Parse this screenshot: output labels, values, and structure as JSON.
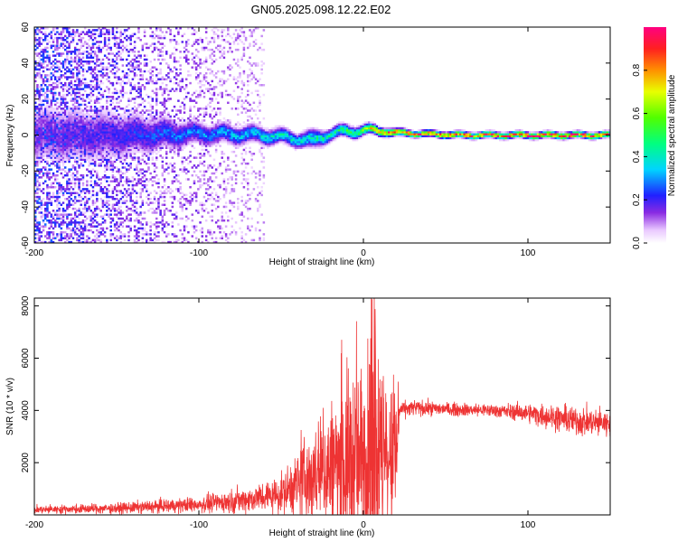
{
  "title": "GN05.2025.098.12.22.E02",
  "chart_data": [
    {
      "type": "heatmap",
      "xlabel": "Height of straight line (km)",
      "ylabel": "Frequency (Hz)",
      "xlim": [
        -200,
        150
      ],
      "ylim": [
        -60,
        60
      ],
      "x_ticks": [
        -200,
        -100,
        0,
        100
      ],
      "y_ticks": [
        -60,
        -40,
        -20,
        0,
        20,
        40,
        60
      ],
      "colorbar": {
        "label": "Normalized spectral amplitude",
        "range": [
          0,
          1
        ],
        "ticks": [
          "0.0",
          "0.2",
          "0.4",
          "0.6",
          "0.8"
        ],
        "tick_values": [
          0,
          0.2,
          0.4,
          0.6,
          0.8
        ]
      },
      "ridge": {
        "description_points_x": [
          -200,
          -150,
          -100,
          -60,
          -40,
          -30,
          -20,
          -10,
          0,
          10,
          30,
          60,
          100,
          150
        ],
        "center_frequency": [
          0,
          0,
          1,
          0,
          -2,
          -3,
          1,
          2,
          3,
          2,
          1,
          0,
          0,
          0
        ],
        "half_width": [
          30,
          22,
          10,
          8,
          7,
          9,
          6,
          6,
          5,
          4,
          3,
          3,
          3,
          3
        ],
        "peak_amplitude": [
          0.15,
          0.2,
          0.3,
          0.38,
          0.4,
          0.4,
          0.45,
          0.5,
          0.55,
          0.9,
          0.85,
          0.85,
          0.95,
          0.9
        ]
      }
    },
    {
      "type": "line",
      "xlabel": "Height of straight line (km)",
      "ylabel": "SNR (10 * v/v)",
      "xlim": [
        -200,
        150
      ],
      "ylim": [
        0,
        8300
      ],
      "x_ticks": [
        -200,
        -100,
        0,
        100
      ],
      "y_ticks": [
        2000,
        4000,
        6000,
        8000
      ],
      "color": "#ee3333",
      "envelope": {
        "x": [
          -200,
          -150,
          -100,
          -70,
          -50,
          -40,
          -30,
          -20,
          -10,
          0,
          5,
          10,
          15,
          20,
          22,
          30,
          50,
          80,
          100,
          110,
          120,
          130,
          150
        ],
        "baseline": [
          200,
          250,
          400,
          600,
          800,
          1200,
          1500,
          1800,
          2000,
          2000,
          2200,
          2000,
          2000,
          2100,
          4000,
          4100,
          4050,
          4000,
          3900,
          3800,
          3700,
          3600,
          3500
        ],
        "amplitude": [
          150,
          200,
          300,
          500,
          700,
          1200,
          1800,
          2500,
          3500,
          4000,
          4300,
          3800,
          2800,
          2500,
          300,
          300,
          250,
          250,
          350,
          450,
          500,
          550,
          500
        ]
      }
    }
  ]
}
